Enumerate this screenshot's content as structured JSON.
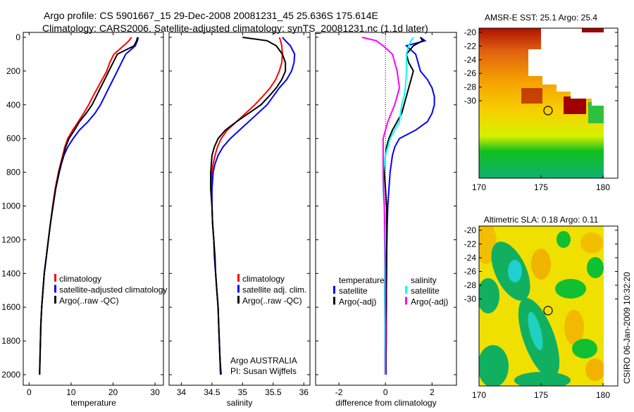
{
  "chart_data": [
    {
      "type": "line",
      "title_line1": "Argo profile: CS 5901667_15 29-Dec-2008 20081231_45 25.636S 175.614E",
      "title_line2": "Climatology: CARS2006. Satellite-adjusted climatology: synTS_20081231.nc (1.1d later)",
      "depth": [
        0,
        20,
        50,
        100,
        150,
        200,
        250,
        300,
        350,
        400,
        450,
        500,
        550,
        600,
        650,
        700,
        750,
        800,
        900,
        1000,
        1100,
        1200,
        1300,
        1400,
        1500,
        1600,
        1700,
        1800,
        1900,
        2000
      ],
      "depth_ticks": [
        "0",
        "200",
        "400",
        "600",
        "800",
        "1000",
        "1200",
        "1400",
        "1600",
        "1800",
        "2000"
      ],
      "ylim": [
        0,
        2000
      ],
      "panels": [
        {
          "xlabel": "temperature",
          "xlim": [
            -1.4,
            32
          ],
          "xticks": [
            0,
            10,
            20,
            30
          ],
          "xtick_labels": [
            "0",
            "10",
            "20",
            "30"
          ],
          "legend": [
            "climatology",
            "satellite-adjusted climatology",
            "Argo(..raw -QC)"
          ],
          "series": [
            {
              "name": "climatology",
              "color": "#ff0000",
              "values": [
                24.4,
                23.8,
                22.5,
                20.2,
                19.2,
                18.5,
                17.4,
                16.3,
                15.2,
                14.2,
                13.0,
                11.7,
                10.4,
                9.2,
                8.5,
                8.0,
                7.5,
                7.0,
                6.2,
                5.6,
                5.1,
                4.6,
                4.1,
                3.6,
                3.3,
                3.0,
                2.8,
                2.7,
                2.6,
                2.5
              ]
            },
            {
              "name": "satellite-adjusted climatology",
              "color": "#0000ff",
              "values": [
                26.0,
                25.8,
                25.3,
                23.0,
                22.0,
                21.0,
                20.0,
                19.0,
                18.0,
                17.0,
                15.7,
                14.0,
                12.0,
                10.5,
                9.2,
                8.3,
                7.7,
                7.2,
                6.3,
                5.7,
                5.1,
                4.6,
                4.1,
                3.6,
                3.3,
                3.0,
                2.8,
                2.7,
                2.6,
                2.5
              ]
            },
            {
              "name": "Argo(..raw -QC)",
              "color": "#000000",
              "values": [
                25.8,
                25.6,
                25.0,
                21.0,
                20.0,
                19.0,
                18.0,
                17.0,
                16.0,
                15.0,
                13.6,
                12.0,
                10.8,
                9.5,
                8.7,
                8.2,
                7.6,
                7.1,
                6.3,
                5.7,
                5.1,
                4.6,
                4.1,
                3.6,
                3.3,
                3.0,
                2.8,
                2.7,
                2.6,
                2.5
              ]
            }
          ]
        },
        {
          "xlabel": "salinity",
          "xlim": [
            33.8,
            36.1
          ],
          "xticks": [
            34,
            34.5,
            35,
            35.5,
            36
          ],
          "xtick_labels": [
            "34",
            "34.5",
            "35",
            "35.5",
            "36"
          ],
          "legend": [
            "climatology",
            "satellite adj. clim.",
            "Argo(..raw -QC)"
          ],
          "credit": [
            "Argo AUSTRALIA",
            "PI: Susan Wijffels"
          ],
          "series": [
            {
              "name": "climatology",
              "color": "#ff0000",
              "values": [
                35.6,
                35.62,
                35.64,
                35.65,
                35.64,
                35.6,
                35.54,
                35.45,
                35.33,
                35.2,
                35.05,
                34.9,
                34.75,
                34.65,
                34.59,
                34.55,
                34.52,
                34.5,
                34.49,
                34.5,
                34.51,
                34.53,
                34.54,
                34.56,
                34.58,
                34.6,
                34.61,
                34.62,
                34.63,
                34.64
              ]
            },
            {
              "name": "satellite adj. clim.",
              "color": "#0000ff",
              "values": [
                35.65,
                35.7,
                35.78,
                35.85,
                35.84,
                35.8,
                35.72,
                35.6,
                35.5,
                35.4,
                35.25,
                35.1,
                34.95,
                34.8,
                34.68,
                34.6,
                34.55,
                34.52,
                34.5,
                34.5,
                34.51,
                34.53,
                34.54,
                34.56,
                34.58,
                34.6,
                34.61,
                34.62,
                34.63,
                34.64
              ]
            },
            {
              "name": "Argo(..raw -QC)",
              "color": "#000000",
              "values": [
                35.0,
                35.4,
                35.55,
                35.65,
                35.7,
                35.7,
                35.64,
                35.55,
                35.43,
                35.3,
                35.1,
                34.9,
                34.72,
                34.6,
                34.54,
                34.5,
                34.49,
                34.48,
                34.48,
                34.5,
                34.51,
                34.53,
                34.55,
                34.56,
                34.58,
                34.6,
                34.61,
                34.62,
                34.63,
                34.65
              ]
            }
          ]
        },
        {
          "xlabel": "difference from climatology",
          "xlim": [
            -3.0,
            3.05
          ],
          "xticks": [
            -2,
            0,
            2
          ],
          "xtick_labels": [
            "-2",
            "0",
            "2"
          ],
          "legend_temperature": {
            "heading": "temperature",
            "items": [
              "satellite",
              "Argo(-adj)"
            ]
          },
          "legend_salinity": {
            "heading": "salinity",
            "items": [
              "satellite",
              "Argo(-adj)"
            ]
          },
          "series": [
            {
              "name": "temperature satellite",
              "color": "#0000ff",
              "values": [
                1.5,
                1.7,
                0.9,
                1.3,
                1.4,
                1.5,
                1.8,
                2.0,
                2.1,
                2.1,
                2.0,
                1.8,
                1.3,
                0.6,
                0.4,
                0.3,
                0.25,
                0.2,
                0.15,
                0.1,
                0.08,
                0.06,
                0.05,
                0.04,
                0.04,
                0.03,
                0.03,
                0.03,
                0.02,
                0.02
              ]
            },
            {
              "name": "temperature Argo(-adj)",
              "color": "#000000",
              "values": [
                1.5,
                1.6,
                1.2,
                0.9,
                1.0,
                1.2,
                1.1,
                1.0,
                0.9,
                0.8,
                0.7,
                0.5,
                0.3,
                0.15,
                0.05,
                0.0,
                -0.05,
                -0.05,
                0.0,
                0.05,
                0.05,
                0.06,
                0.05,
                0.05,
                0.04,
                0.04,
                0.03,
                0.03,
                0.02,
                0.02
              ]
            },
            {
              "name": "salinity satellite",
              "color": "#00ffff",
              "values": [
                1.2,
                1.1,
                1.0,
                0.9,
                0.9,
                0.9,
                0.88,
                0.85,
                0.8,
                0.7,
                0.65,
                0.6,
                0.4,
                0.2,
                0.1,
                0.0,
                -0.05,
                -0.1,
                -0.1,
                -0.05,
                -0.05,
                -0.04,
                -0.03,
                -0.03,
                -0.04,
                -0.03,
                -0.02,
                -0.02,
                -0.02,
                -0.02
              ]
            },
            {
              "name": "salinity Argo(-adj)",
              "color": "#ff00ff",
              "values": [
                -1.0,
                -0.4,
                -0.1,
                0.3,
                0.4,
                0.5,
                0.55,
                0.6,
                0.5,
                0.4,
                0.25,
                0.1,
                0.0,
                -0.1,
                -0.1,
                -0.1,
                -0.1,
                -0.1,
                -0.08,
                -0.05,
                -0.03,
                -0.02,
                -0.01,
                0.0,
                0.0,
                0.0,
                0.01,
                0.01,
                0.0,
                0.0
              ]
            }
          ]
        }
      ]
    },
    {
      "type": "heatmap",
      "title": "AMSR-E SST: 25.1 Argo: 25.4",
      "xlim": [
        170,
        181.2
      ],
      "ylim": [
        -31.6,
        -19.6
      ],
      "xtick_labels": [
        "170",
        "175",
        "180"
      ],
      "ytick_labels": [
        "-20",
        "-22",
        "-24",
        "-26",
        "-28",
        "-30"
      ],
      "argo_position": {
        "lon": 175.614,
        "lat": -25.636
      }
    },
    {
      "type": "heatmap",
      "title": "Altimetric SLA: 0.18 Argo: 0.11",
      "xlim": [
        170,
        181.2
      ],
      "ylim": [
        -31.6,
        -19.6
      ],
      "xtick_labels": [
        "170",
        "175",
        "180"
      ],
      "ytick_labels": [
        "-20",
        "-22",
        "-24",
        "-26",
        "-28",
        "-30"
      ],
      "argo_position": {
        "lon": 175.614,
        "lat": -25.636
      }
    }
  ],
  "footer_stamp": "CSIRO 06-Jan-2009 10:32:20"
}
